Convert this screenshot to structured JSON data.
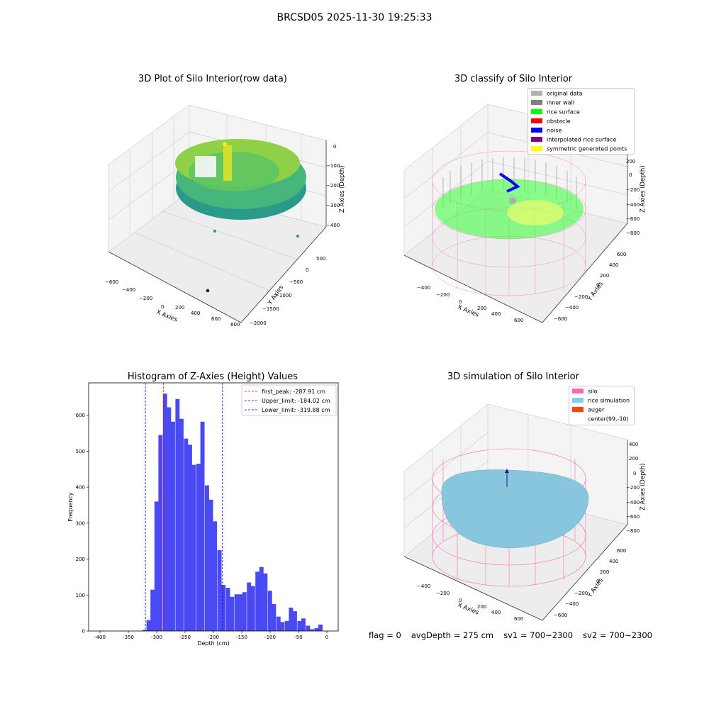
{
  "figure": {
    "suptitle": "BRCSD05 2025-11-30 19:25:33",
    "status": {
      "flag": "flag = 0",
      "avg_depth": "avgDepth = 275 cm",
      "sv1": "sv1 = 700~2300",
      "sv2": "sv2 = 700~2300"
    }
  },
  "chart_data": [
    {
      "type": "scatter3d",
      "title": "3D Plot of Silo Interior(row data)",
      "xlabel": "X Axies",
      "ylabel": "Y Axies",
      "zlabel": "Z Axies (Depth)",
      "x_ticks": [
        "−600",
        "−400",
        "−200",
        "0",
        "200",
        "400",
        "600",
        "800"
      ],
      "y_ticks": [
        "500",
        "0",
        "−500",
        "−1000",
        "−1500",
        "−2000"
      ],
      "z_ticks": [
        "0",
        "−100",
        "−200",
        "−300",
        "−400"
      ],
      "colormap": "viridis",
      "colors": {
        "high": "#fde725",
        "mid": "#5ec962",
        "low": "#21918c",
        "deep": "#3b528b",
        "outlier": "#440154"
      }
    },
    {
      "type": "scatter3d",
      "title": "3D classify of Silo Interior",
      "xlabel": "X Axies",
      "ylabel": "Y Axies",
      "zlabel": "Z Axies (Depth)",
      "x_ticks": [
        "−400",
        "−200",
        "0",
        "200",
        "400",
        "600"
      ],
      "y_ticks": [
        "600",
        "400",
        "200",
        "0",
        "−200",
        "−400",
        "−600"
      ],
      "z_ticks": [
        "200",
        "0",
        "−200",
        "−400",
        "−600",
        "−800"
      ],
      "legend_position": "top-right",
      "legend": [
        {
          "label": "original data",
          "color": "#b0b0b0"
        },
        {
          "label": "inner wall",
          "color": "#808080"
        },
        {
          "label": "rice surface",
          "color": "#00ff00"
        },
        {
          "label": "obstacle",
          "color": "#ff0000"
        },
        {
          "label": "noise",
          "color": "#0000ff"
        },
        {
          "label": "interpolated rice surface",
          "color": "#800080"
        },
        {
          "label": "symmetric generated points",
          "color": "#ffff00"
        }
      ],
      "colors": {
        "wireframe": "#ff69b4"
      }
    },
    {
      "type": "bar",
      "title": "Histogram of Z-Axies (Height) Values",
      "xlabel": "Depth (cm)",
      "ylabel": "Frequency",
      "xlim": [
        -420,
        20
      ],
      "ylim": [
        0,
        690
      ],
      "x_ticks": [
        -400,
        -350,
        -300,
        -250,
        -200,
        -150,
        -100,
        -50,
        0
      ],
      "y_ticks": [
        0,
        100,
        200,
        300,
        400,
        500,
        600
      ],
      "bin_width": 7.4,
      "bins": [
        {
          "x": -400,
          "v": 1
        },
        {
          "x": -325,
          "v": 3
        },
        {
          "x": -318,
          "v": 30
        },
        {
          "x": -311,
          "v": 115
        },
        {
          "x": -304,
          "v": 360
        },
        {
          "x": -297,
          "v": 545
        },
        {
          "x": -289,
          "v": 660
        },
        {
          "x": -282,
          "v": 622
        },
        {
          "x": -275,
          "v": 582
        },
        {
          "x": -267,
          "v": 645
        },
        {
          "x": -260,
          "v": 590
        },
        {
          "x": -252,
          "v": 535
        },
        {
          "x": -245,
          "v": 518
        },
        {
          "x": -238,
          "v": 462
        },
        {
          "x": -230,
          "v": 465
        },
        {
          "x": -223,
          "v": 582
        },
        {
          "x": -215,
          "v": 405
        },
        {
          "x": -208,
          "v": 365
        },
        {
          "x": -201,
          "v": 305
        },
        {
          "x": -193,
          "v": 225
        },
        {
          "x": -186,
          "v": 128
        },
        {
          "x": -178,
          "v": 120
        },
        {
          "x": -171,
          "v": 95
        },
        {
          "x": -163,
          "v": 102
        },
        {
          "x": -156,
          "v": 102
        },
        {
          "x": -149,
          "v": 108
        },
        {
          "x": -141,
          "v": 135
        },
        {
          "x": -134,
          "v": 125
        },
        {
          "x": -126,
          "v": 165
        },
        {
          "x": -119,
          "v": 178
        },
        {
          "x": -112,
          "v": 160
        },
        {
          "x": -104,
          "v": 112
        },
        {
          "x": -97,
          "v": 75
        },
        {
          "x": -89,
          "v": 40
        },
        {
          "x": -82,
          "v": 25
        },
        {
          "x": -74,
          "v": 28
        },
        {
          "x": -67,
          "v": 65
        },
        {
          "x": -60,
          "v": 55
        },
        {
          "x": -52,
          "v": 28
        },
        {
          "x": -45,
          "v": 35
        },
        {
          "x": -37,
          "v": 15
        },
        {
          "x": -30,
          "v": 5
        },
        {
          "x": -22,
          "v": 8
        },
        {
          "x": -15,
          "v": 18
        }
      ],
      "bar_color": "#4a4af5",
      "lines": [
        {
          "label": "first_peak: -287.91 cm",
          "x": -287.91,
          "color": "#ff0000"
        },
        {
          "label": "Upper_limit: -184.02 cm",
          "x": -184.02,
          "color": "#0000ff"
        },
        {
          "label": "Lower_limit: -319.88 cm",
          "x": -319.88,
          "color": "#0000ff"
        }
      ],
      "legend_position": "top-right"
    },
    {
      "type": "surface3d",
      "title": "3D simulation of Silo Interior",
      "xlabel": "X Axies",
      "ylabel": "Y Axies",
      "zlabel": "Z Axies (Depth)",
      "x_ticks": [
        "−400",
        "−200",
        "0",
        "200",
        "400",
        "600"
      ],
      "y_ticks": [
        "600",
        "400",
        "200",
        "0",
        "−200",
        "−400",
        "−600"
      ],
      "z_ticks": [
        "400",
        "200",
        "0",
        "−200",
        "−400",
        "−600",
        "−800"
      ],
      "legend_position": "top-right",
      "legend": [
        {
          "label": "silo",
          "color": "#ff69b4"
        },
        {
          "label": "rice simulation",
          "color": "#87cde6"
        },
        {
          "label": "auger",
          "color": "#ff4500"
        },
        {
          "label": "center(99,-10)",
          "color": ""
        }
      ],
      "colors": {
        "wireframe": "#ff69b4",
        "surface": "#87c6dc"
      }
    }
  ]
}
